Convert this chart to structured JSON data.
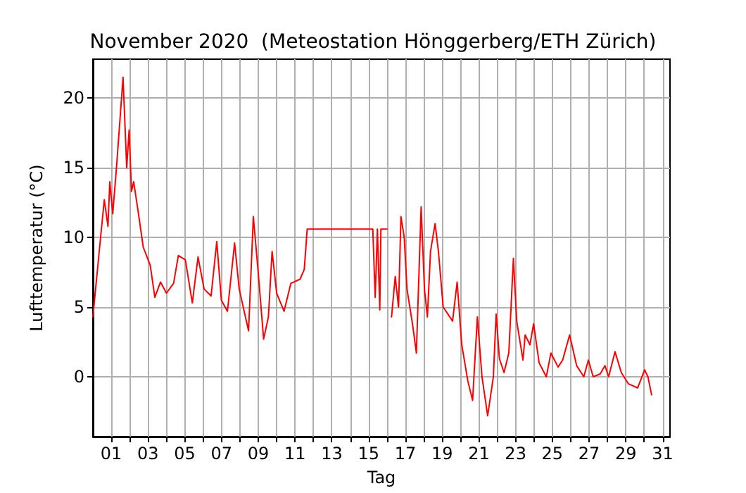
{
  "chart_data": {
    "type": "line",
    "title": "November 2020  (Meteostation Hönggerberg/ETH Zürich)",
    "xlabel": "Tag",
    "ylabel": "Lufttemperatur (°C)",
    "xlim": [
      0,
      31.4
    ],
    "xticks": [
      {
        "value": 1,
        "label": "01"
      },
      {
        "value": 2,
        "label": null
      },
      {
        "value": 3,
        "label": "03"
      },
      {
        "value": 4,
        "label": null
      },
      {
        "value": 5,
        "label": "05"
      },
      {
        "value": 6,
        "label": null
      },
      {
        "value": 7,
        "label": "07"
      },
      {
        "value": 8,
        "label": null
      },
      {
        "value": 9,
        "label": "09"
      },
      {
        "value": 10,
        "label": null
      },
      {
        "value": 11,
        "label": "11"
      },
      {
        "value": 12,
        "label": null
      },
      {
        "value": 13,
        "label": "13"
      },
      {
        "value": 14,
        "label": null
      },
      {
        "value": 15,
        "label": "15"
      },
      {
        "value": 16,
        "label": null
      },
      {
        "value": 17,
        "label": "17"
      },
      {
        "value": 18,
        "label": null
      },
      {
        "value": 19,
        "label": "19"
      },
      {
        "value": 20,
        "label": null
      },
      {
        "value": 21,
        "label": "21"
      },
      {
        "value": 22,
        "label": null
      },
      {
        "value": 23,
        "label": "23"
      },
      {
        "value": 24,
        "label": null
      },
      {
        "value": 25,
        "label": "25"
      },
      {
        "value": 26,
        "label": null
      },
      {
        "value": 27,
        "label": "27"
      },
      {
        "value": 28,
        "label": null
      },
      {
        "value": 29,
        "label": "29"
      },
      {
        "value": 30,
        "label": null
      },
      {
        "value": 31,
        "label": "31"
      }
    ],
    "ylim": [
      -4.3,
      22.8
    ],
    "yticks": [
      0,
      5,
      10,
      15,
      20
    ],
    "grid": true,
    "marker": "none",
    "line_style": "solid",
    "series": [
      {
        "color": "#ff0000",
        "x": [
          0,
          0.44,
          0.62,
          0.82,
          0.92,
          1.08,
          1.3,
          1.64,
          1.84,
          1.97,
          2.1,
          2.22,
          2.48,
          2.74,
          3.12,
          3.37,
          3.68,
          4.0,
          4.39,
          4.65,
          5.03,
          5.41,
          5.72,
          6.05,
          6.43,
          6.74,
          6.99,
          7.32,
          7.71,
          7.96,
          8.47,
          8.73,
          8.98,
          9.29,
          9.55,
          9.75,
          10.0,
          10.4,
          10.77,
          11.27,
          11.5,
          11.66,
          15.23,
          15.36,
          15.48,
          15.61,
          15.67,
          16.0,
          16.1,
          16.25,
          16.45,
          16.63,
          16.76,
          16.94,
          17.09,
          17.4,
          17.6,
          17.86,
          18.04,
          18.2,
          18.37,
          18.62,
          18.8,
          19.06,
          19.57,
          19.82,
          20.07,
          20.4,
          20.66,
          20.92,
          21.17,
          21.48,
          21.79,
          21.94,
          22.12,
          22.37,
          22.63,
          22.88,
          23.06,
          23.4,
          23.52,
          23.78,
          23.98,
          24.28,
          24.67,
          24.92,
          25.31,
          25.56,
          25.94,
          26.32,
          26.71,
          26.96,
          27.22,
          27.6,
          27.86,
          28.06,
          28.41,
          28.75,
          29.13,
          29.64,
          30.02,
          30.2,
          30.4
        ],
        "values": [
          4.3,
          10.3,
          12.7,
          10.8,
          14,
          11.7,
          15.3,
          21.5,
          15,
          17.7,
          13.3,
          14,
          11.7,
          9.3,
          8,
          5.7,
          6.8,
          6.0,
          6.7,
          8.7,
          8.4,
          5.3,
          8.6,
          6.3,
          5.8,
          9.7,
          5.5,
          4.7,
          9.6,
          6.3,
          3.3,
          11.5,
          7.7,
          2.7,
          4.3,
          9,
          6,
          4.7,
          6.7,
          7,
          7.7,
          10.6,
          10.6,
          5.7,
          10.6,
          4.8,
          10.6,
          10.6,
          null,
          4.3,
          7.2,
          5,
          11.5,
          10,
          6.3,
          3.7,
          1.7,
          12.2,
          6.3,
          4.3,
          9,
          11,
          9,
          5,
          4,
          6.8,
          2.3,
          -0.3,
          -1.7,
          4.3,
          0,
          -2.8,
          0,
          4.5,
          1.3,
          0.3,
          1.7,
          8.5,
          4,
          1.2,
          3,
          2.3,
          3.8,
          1,
          0,
          1.7,
          0.7,
          1.2,
          3,
          0.8,
          0,
          1.2,
          0,
          0.2,
          0.8,
          0,
          1.8,
          0.3,
          -0.5,
          -0.8,
          0.5,
          0,
          -1.3
        ]
      }
    ]
  }
}
